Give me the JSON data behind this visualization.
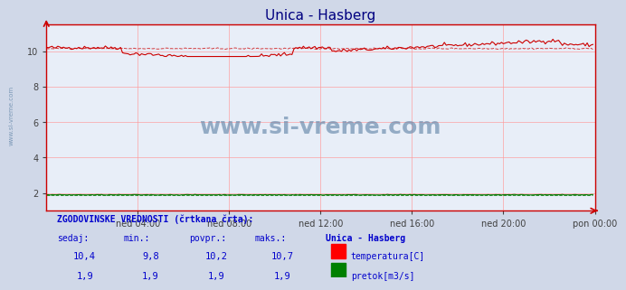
{
  "title": "Unica - Hasberg",
  "title_color": "#000080",
  "bg_color": "#d0d8e8",
  "plot_bg_color": "#e8eef8",
  "grid_color": "#ff9999",
  "x_tick_labels": [
    "ned 04:00",
    "ned 08:00",
    "ned 12:00",
    "ned 16:00",
    "ned 20:00",
    "pon 00:00"
  ],
  "x_tick_positions": [
    48,
    96,
    144,
    192,
    240,
    288
  ],
  "x_total_points": 288,
  "ylim": [
    1.0,
    11.5
  ],
  "yticks": [
    2,
    4,
    6,
    8,
    10
  ],
  "ylabel_color": "#404040",
  "axis_color": "#cc0000",
  "temp_color": "#cc0000",
  "flow_color": "#007700",
  "watermark_text": "www.si-vreme.com",
  "watermark_color": "#6688aa",
  "left_label": "www.si-vreme.com",
  "temp_sedaj": 10.4,
  "temp_min": 9.8,
  "temp_povpr": 10.2,
  "temp_maks": 10.7,
  "flow_sedaj": 1.9,
  "flow_min": 1.9,
  "flow_povpr": 1.9,
  "flow_maks": 1.9,
  "table_header_color": "#0000cc",
  "table_data_color": "#0000cc"
}
